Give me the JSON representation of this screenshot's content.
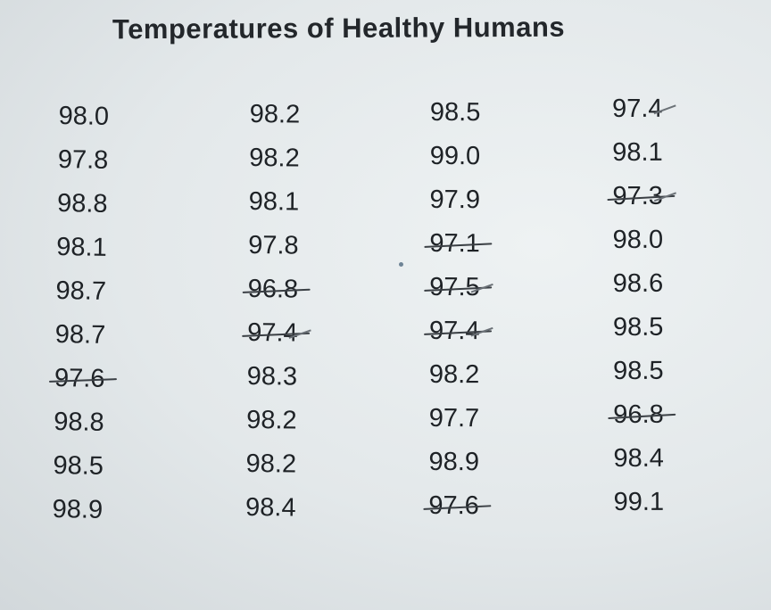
{
  "title": "Temperatures of Healthy Humans",
  "columns": [
    {
      "values": [
        "98.0",
        "97.8",
        "98.8",
        "98.1",
        "98.7",
        "98.7",
        "97.6",
        "98.8",
        "98.5",
        "98.9"
      ],
      "crossed_out_rows": [
        6
      ],
      "ticked_rows": []
    },
    {
      "values": [
        "98.2",
        "98.2",
        "98.1",
        "97.8",
        "96.8",
        "97.4",
        "98.3",
        "98.2",
        "98.2",
        "98.4"
      ],
      "crossed_out_rows": [
        4,
        5
      ],
      "ticked_rows": [
        5
      ]
    },
    {
      "values": [
        "98.5",
        "99.0",
        "97.9",
        "97.1",
        "97.5",
        "97.4",
        "98.2",
        "97.7",
        "98.9",
        "97.6"
      ],
      "crossed_out_rows": [
        3,
        4,
        5,
        9
      ],
      "ticked_rows": [
        4,
        5
      ]
    },
    {
      "values": [
        "97.4",
        "98.1",
        "97.3",
        "98.0",
        "98.6",
        "98.5",
        "98.5",
        "96.8",
        "98.4",
        "99.1"
      ],
      "crossed_out_rows": [
        2,
        7
      ],
      "ticked_rows": [
        0,
        2
      ]
    }
  ],
  "colors": {
    "paper": "#e6ebed",
    "ink": "#1e2226",
    "pen_marks": "#3a3f44"
  }
}
